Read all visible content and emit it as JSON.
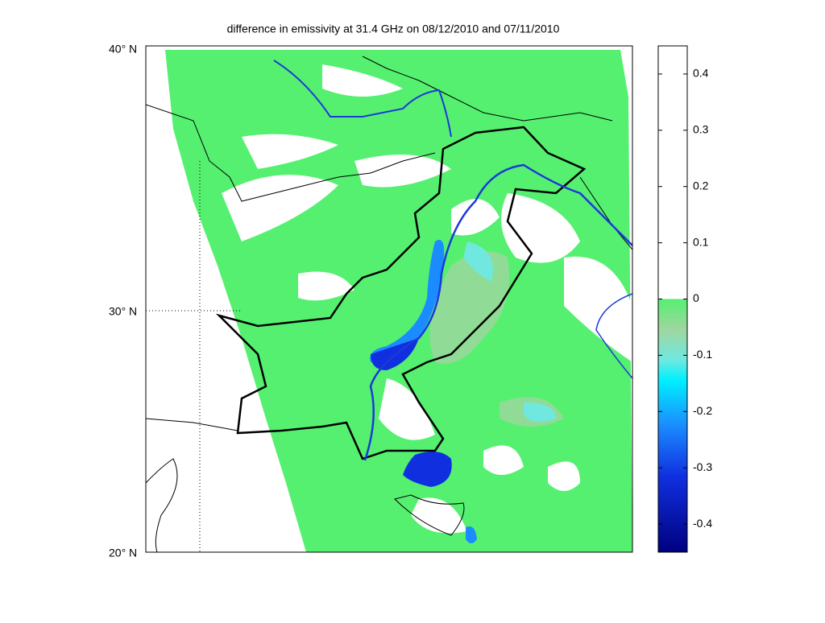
{
  "title": "difference in emissivity at 31.4 GHz on 08/12/2010 and 07/11/2010",
  "map": {
    "lat_labels": [
      "40° N",
      "30° N",
      "20° N"
    ]
  },
  "colorbar": {
    "lim": [
      -0.45,
      0.45
    ],
    "ticks": [
      0.4,
      0.3,
      0.2,
      0.1,
      0,
      -0.1,
      -0.2,
      -0.3,
      -0.4
    ]
  }
}
